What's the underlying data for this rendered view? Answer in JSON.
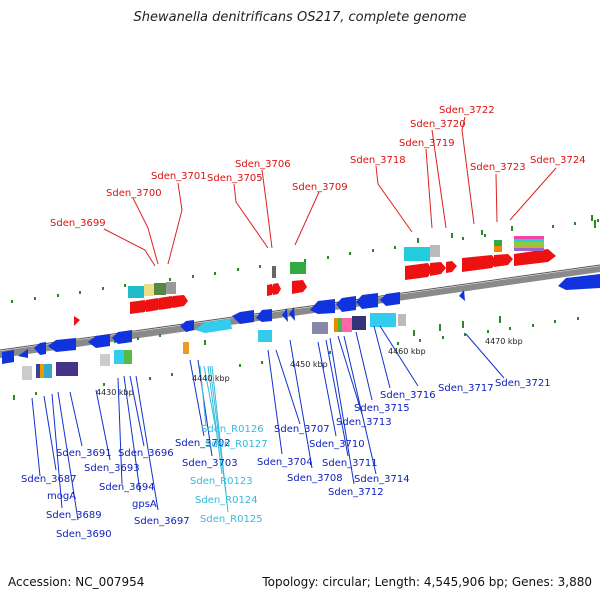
{
  "title": "Shewanella denitrificans OS217, complete genome",
  "footer": {
    "accession": "Accession: NC_007954",
    "summary": "Topology: circular; Length: 4,545,906 bp; Genes: 3,880"
  },
  "kbp_ticks": [
    "4430 kbp",
    "4440 kbp",
    "4450 kbp",
    "4460 kbp",
    "4470 kbp"
  ],
  "colors": {
    "forward_gene": "#ee1111",
    "reverse_gene": "#1133dd",
    "rna": "#33ccee",
    "backbone": "#888888"
  },
  "top_labels": [
    "Sden_3699",
    "Sden_3700",
    "Sden_3701",
    "Sden_3705",
    "Sden_3706",
    "Sden_3709",
    "Sden_3718",
    "Sden_3719",
    "Sden_3720",
    "Sden_3722",
    "Sden_3723",
    "Sden_3724"
  ],
  "bottom_labels": [
    "Sden_3687",
    "mogA",
    "Sden_3689",
    "Sden_3690",
    "Sden_3691",
    "Sden_3693",
    "Sden_3694",
    "gpsA",
    "Sden_3696",
    "Sden_3697",
    "Sden_3702",
    "Sden_3703",
    "Sden_3704",
    "Sden_3707",
    "Sden_3708",
    "Sden_3710",
    "Sden_3711",
    "Sden_3712",
    "Sden_3713",
    "Sden_3714",
    "Sden_3715",
    "Sden_3716",
    "Sden_3717",
    "Sden_3721"
  ],
  "rna_labels": [
    "Sden_R0126",
    "Sden_R0127",
    "Sden_R0123",
    "Sden_R0124",
    "Sden_R0125"
  ]
}
